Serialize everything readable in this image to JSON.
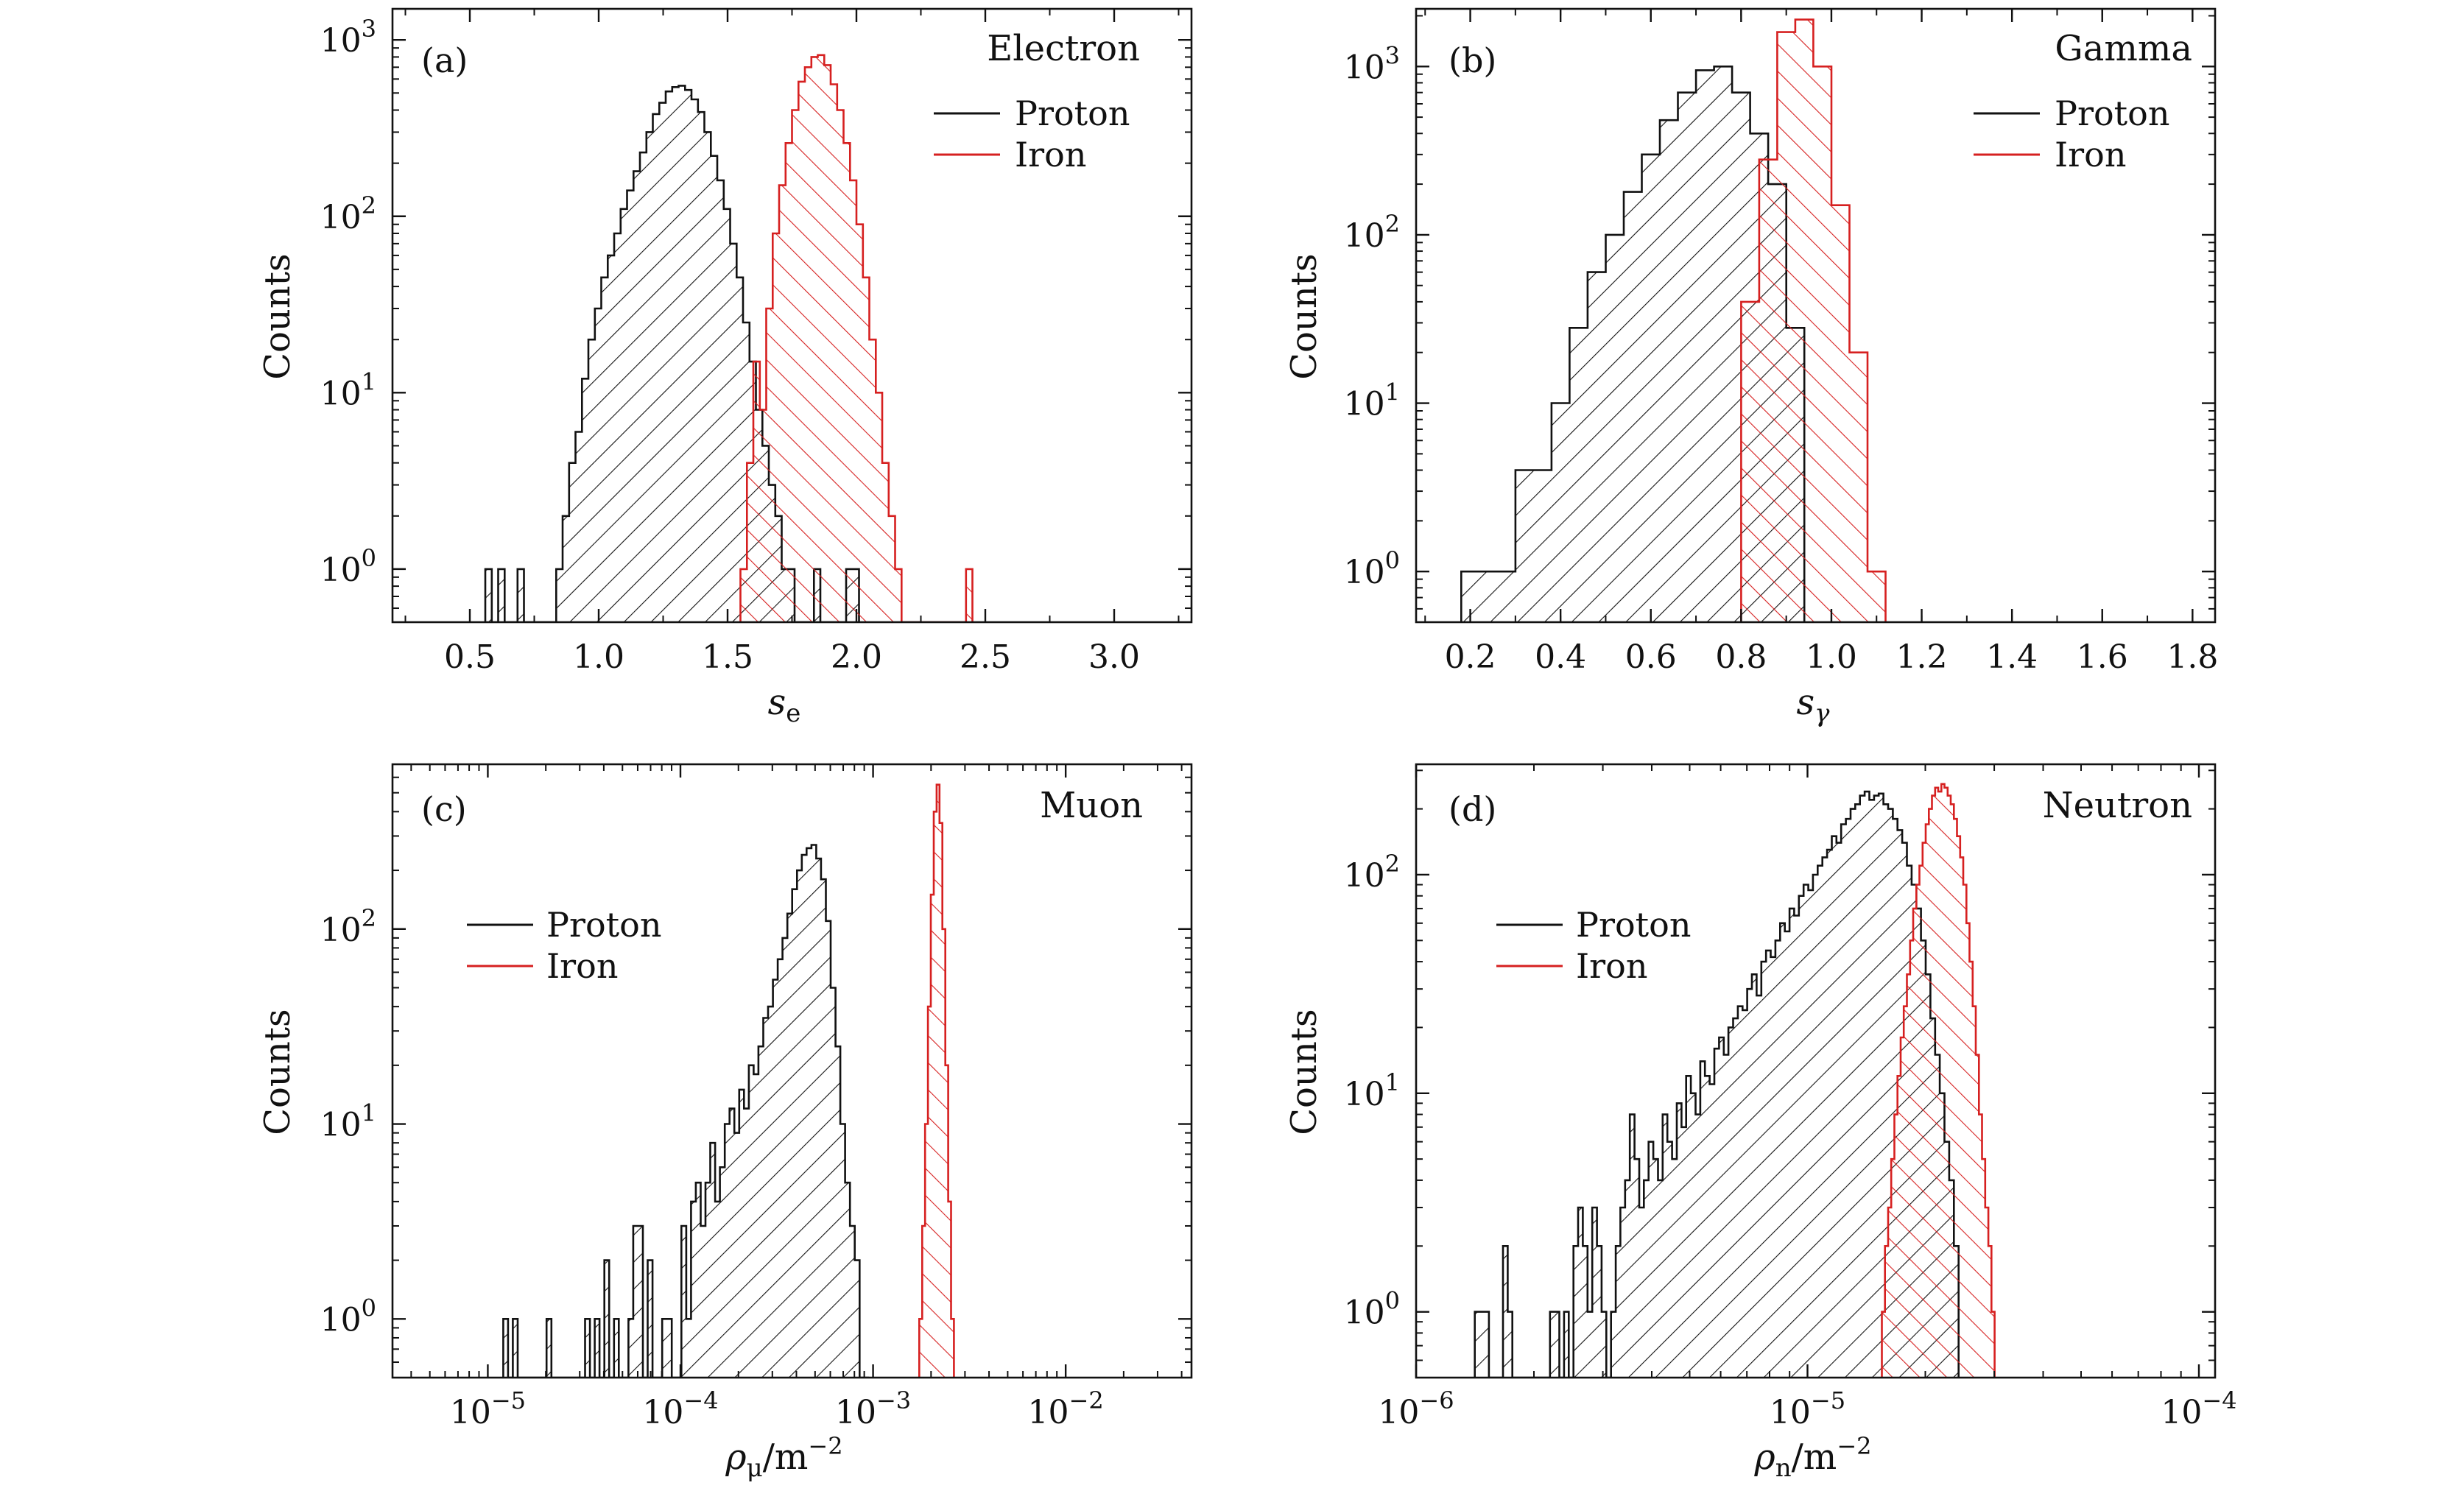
{
  "colors": {
    "proton": "#111111",
    "iron": "#d62020",
    "axis": "#111111"
  },
  "legend": {
    "proton": "Proton",
    "iron": "Iron"
  },
  "chart_data": [
    {
      "id": "a",
      "panel_label": "(a)",
      "title": "Electron",
      "type": "histogram",
      "xscale": "linear",
      "xlim": [
        0.2,
        3.3
      ],
      "xticks": [
        0.5,
        1.0,
        1.5,
        2.0,
        2.5,
        3.0
      ],
      "xtick_labels": [
        "0.5",
        "1.0",
        "1.5",
        "2.0",
        "2.5",
        "3.0"
      ],
      "xlabel": "s",
      "xlabel_sub": "e",
      "ylabel": "Counts",
      "ylim": [
        0.5,
        1500
      ],
      "yticks": [
        1,
        10,
        100,
        1000
      ],
      "ytick_labels": [
        {
          "base": "10",
          "exp": "0"
        },
        {
          "base": "10",
          "exp": "1"
        },
        {
          "base": "10",
          "exp": "2"
        },
        {
          "base": "10",
          "exp": "3"
        }
      ],
      "legend_position": "top-right",
      "series": [
        {
          "name": "Proton",
          "x_start": 0.56,
          "bin_width": 0.025,
          "counts": [
            1,
            0,
            1,
            0,
            0,
            1,
            0,
            0,
            0,
            0,
            0,
            1,
            2,
            4,
            6,
            12,
            20,
            30,
            45,
            60,
            80,
            110,
            140,
            180,
            230,
            300,
            380,
            440,
            510,
            540,
            550,
            520,
            460,
            390,
            300,
            220,
            160,
            110,
            70,
            45,
            25,
            15,
            8,
            5,
            3,
            2,
            1,
            1,
            0,
            0,
            0,
            1,
            0,
            0,
            0,
            0,
            1,
            1
          ]
        },
        {
          "name": "Iron",
          "x_start": 1.55,
          "bin_width": 0.025,
          "counts": [
            1,
            4,
            15,
            8,
            30,
            80,
            150,
            260,
            400,
            580,
            700,
            800,
            820,
            720,
            560,
            400,
            260,
            160,
            90,
            45,
            20,
            10,
            4,
            2,
            1,
            0,
            0,
            0,
            0,
            0,
            0,
            0,
            0,
            0,
            0,
            1
          ]
        }
      ]
    },
    {
      "id": "b",
      "panel_label": "(b)",
      "title": "Gamma",
      "type": "histogram",
      "xscale": "linear",
      "xlim": [
        0.08,
        1.85
      ],
      "xticks": [
        0.2,
        0.4,
        0.6,
        0.8,
        1.0,
        1.2,
        1.4,
        1.6,
        1.8
      ],
      "xtick_labels": [
        "0.2",
        "0.4",
        "0.6",
        "0.8",
        "1.0",
        "1.2",
        "1.4",
        "1.6",
        "1.8"
      ],
      "xlabel": "s",
      "xlabel_sub": "γ",
      "ylabel": "Counts",
      "ylim": [
        0.5,
        2200
      ],
      "yticks": [
        1,
        10,
        100,
        1000
      ],
      "ytick_labels": [
        {
          "base": "10",
          "exp": "0"
        },
        {
          "base": "10",
          "exp": "1"
        },
        {
          "base": "10",
          "exp": "2"
        },
        {
          "base": "10",
          "exp": "3"
        }
      ],
      "legend_position": "top-right",
      "series": [
        {
          "name": "Proton",
          "x_start": 0.18,
          "bin_width": 0.04,
          "counts": [
            1,
            1,
            1,
            4,
            4,
            10,
            28,
            60,
            100,
            180,
            300,
            480,
            700,
            950,
            1000,
            700,
            400,
            200,
            28
          ]
        },
        {
          "name": "Iron",
          "x_start": 0.8,
          "bin_width": 0.04,
          "counts": [
            40,
            280,
            1600,
            1900,
            1000,
            150,
            20,
            1
          ]
        }
      ]
    },
    {
      "id": "c",
      "panel_label": "(c)",
      "title": "Muon",
      "type": "histogram",
      "xscale": "log",
      "xlim": [
        3.2e-06,
        0.045
      ],
      "xticks": [
        1e-05,
        0.0001,
        0.001,
        0.01
      ],
      "xtick_labels": [
        {
          "base": "10",
          "exp": "−5"
        },
        {
          "base": "10",
          "exp": "−4"
        },
        {
          "base": "10",
          "exp": "−3"
        },
        {
          "base": "10",
          "exp": "−2"
        }
      ],
      "xlabel": "ρ",
      "xlabel_sub": "μ",
      "xlabel_unit": "/m",
      "xlabel_unit_exp": "−2",
      "ylabel": "Counts",
      "ylim": [
        0.5,
        700
      ],
      "yticks": [
        1,
        10,
        100
      ],
      "ytick_labels": [
        {
          "base": "10",
          "exp": "0"
        },
        {
          "base": "10",
          "exp": "1"
        },
        {
          "base": "10",
          "exp": "2"
        }
      ],
      "legend_position": "upper-left",
      "series": [
        {
          "name": "Proton",
          "log_start": -4.92,
          "bin_width_log": 0.025,
          "counts": [
            1,
            0,
            1,
            0,
            0,
            0,
            0,
            0,
            0,
            1,
            0,
            0,
            0,
            0,
            0,
            0,
            0,
            1,
            0,
            1,
            0,
            2,
            0,
            1,
            0,
            0,
            1,
            3,
            3,
            0,
            2,
            0,
            0,
            1,
            1,
            0,
            0,
            3,
            1,
            4,
            5,
            3,
            5,
            8,
            4,
            6,
            10,
            12,
            9,
            15,
            12,
            20,
            18,
            25,
            35,
            40,
            55,
            70,
            90,
            120,
            160,
            200,
            240,
            260,
            270,
            230,
            180,
            110,
            50,
            25,
            10,
            5,
            3,
            2,
            0,
            0
          ]
        },
        {
          "name": "Iron",
          "log_start": -2.76,
          "bin_width_log": 0.015,
          "counts": [
            1,
            3,
            10,
            40,
            150,
            400,
            550,
            350,
            100,
            20,
            4,
            1
          ]
        }
      ]
    },
    {
      "id": "d",
      "panel_label": "(d)",
      "title": "Neutron",
      "type": "histogram",
      "xscale": "log",
      "xlim": [
        1e-06,
        0.00011
      ],
      "xticks": [
        1e-06,
        1e-05,
        0.0001
      ],
      "xtick_labels": [
        {
          "base": "10",
          "exp": "−6"
        },
        {
          "base": "10",
          "exp": "−5"
        },
        {
          "base": "10",
          "exp": "−4"
        }
      ],
      "xlabel": "ρ",
      "xlabel_sub": "n",
      "xlabel_unit": "/m",
      "xlabel_unit_exp": "−2",
      "ylabel": "Counts",
      "ylim": [
        0.5,
        320
      ],
      "yticks": [
        1,
        10,
        100
      ],
      "ytick_labels": [
        {
          "base": "10",
          "exp": "0"
        },
        {
          "base": "10",
          "exp": "1"
        },
        {
          "base": "10",
          "exp": "2"
        }
      ],
      "legend_position": "upper-left",
      "series": [
        {
          "name": "Proton",
          "log_start": -5.85,
          "bin_width_log": 0.012,
          "counts": [
            1,
            1,
            1,
            0,
            0,
            0,
            2,
            1,
            0,
            0,
            0,
            0,
            0,
            0,
            0,
            0,
            1,
            1,
            0,
            1,
            0,
            2,
            3,
            2,
            1,
            3,
            2,
            1,
            0,
            1,
            2,
            3,
            4,
            8,
            5,
            3,
            4,
            6,
            5,
            4,
            8,
            6,
            5,
            9,
            7,
            12,
            10,
            8,
            14,
            12,
            11,
            16,
            18,
            15,
            20,
            22,
            25,
            24,
            30,
            35,
            28,
            40,
            45,
            42,
            50,
            60,
            55,
            70,
            65,
            80,
            90,
            85,
            100,
            110,
            120,
            130,
            150,
            140,
            170,
            180,
            200,
            210,
            230,
            240,
            220,
            230,
            235,
            210,
            200,
            180,
            160,
            140,
            110,
            90,
            70,
            50,
            35,
            22,
            15,
            10,
            6,
            4,
            2
          ]
        },
        {
          "name": "Iron",
          "log_start": -4.81,
          "bin_width_log": 0.008,
          "counts": [
            1,
            2,
            3,
            5,
            8,
            12,
            18,
            25,
            35,
            50,
            70,
            90,
            110,
            140,
            170,
            200,
            230,
            250,
            240,
            260,
            250,
            230,
            210,
            180,
            150,
            120,
            90,
            60,
            40,
            25,
            15,
            8,
            5,
            3,
            2,
            1
          ]
        }
      ]
    }
  ]
}
